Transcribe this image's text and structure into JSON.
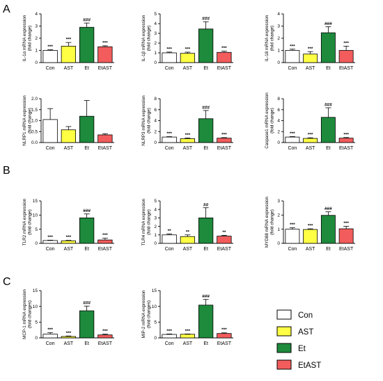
{
  "colors": {
    "Con": "#ffffff",
    "AST": "#ffff44",
    "Et": "#1d8a3c",
    "EtAST": "#f25c5c"
  },
  "categories": [
    "Con",
    "AST",
    "Et",
    "EtAST"
  ],
  "panel_letters": [
    "A",
    "B",
    "C"
  ],
  "legend": [
    {
      "name": "Con",
      "color": "#ffffff"
    },
    {
      "name": "AST",
      "color": "#ffff44"
    },
    {
      "name": "Et",
      "color": "#1d8a3c"
    },
    {
      "name": "EtAST",
      "color": "#f25c5c"
    }
  ],
  "chart_data": [
    {
      "type": "bar",
      "id": "il1a",
      "ylabel": [
        "IL-1α mRNA expression",
        "(fold change)"
      ],
      "categories": [
        "Con",
        "AST",
        "Et",
        "EtAST"
      ],
      "values": [
        1.0,
        1.35,
        2.9,
        1.3
      ],
      "errors": [
        0.05,
        0.3,
        0.35,
        0.08
      ],
      "ylim": [
        0,
        4
      ],
      "yticks": [
        0,
        1,
        2,
        3,
        4
      ],
      "annotations": [
        "***",
        "***",
        "###",
        "***"
      ]
    },
    {
      "type": "bar",
      "id": "il1b",
      "ylabel": [
        "IL-1β mRNA expression",
        "(fold change)"
      ],
      "categories": [
        "Con",
        "AST",
        "Et",
        "EtAST"
      ],
      "values": [
        1.0,
        0.95,
        3.45,
        1.05
      ],
      "errors": [
        0.08,
        0.12,
        0.75,
        0.12
      ],
      "ylim": [
        0,
        5
      ],
      "yticks": [
        0,
        1,
        2,
        3,
        4,
        5
      ],
      "annotations": [
        "***",
        "***",
        "###",
        "***"
      ]
    },
    {
      "type": "bar",
      "id": "il18",
      "ylabel": [
        "IL-18 mRNA expression",
        "(fold change)"
      ],
      "categories": [
        "Con",
        "AST",
        "Et",
        "EtAST"
      ],
      "values": [
        1.0,
        0.7,
        2.45,
        1.0
      ],
      "errors": [
        0.1,
        0.2,
        0.5,
        0.35
      ],
      "ylim": [
        0,
        4
      ],
      "yticks": [
        0,
        1,
        2,
        3,
        4
      ],
      "annotations": [
        "***",
        "***",
        "###",
        "***"
      ]
    },
    {
      "type": "bar",
      "id": "nlrp1",
      "ylabel": [
        "NLRP1 mRNA expression",
        "(fold change)"
      ],
      "categories": [
        "Con",
        "AST",
        "Et",
        "EtAST"
      ],
      "values": [
        1.05,
        0.58,
        1.2,
        0.35
      ],
      "errors": [
        0.5,
        0.15,
        0.72,
        0.05
      ],
      "ylim": [
        0,
        2.0
      ],
      "yticks": [
        0.0,
        0.5,
        1.0,
        1.5,
        2.0
      ],
      "annotations": [
        "",
        "",
        "",
        ""
      ]
    },
    {
      "type": "bar",
      "id": "nlrp3",
      "ylabel": [
        "NLRP3 mRNA expression",
        "(fold change)"
      ],
      "categories": [
        "Con",
        "AST",
        "Et",
        "EtAST"
      ],
      "values": [
        1.0,
        0.7,
        4.35,
        0.8
      ],
      "errors": [
        0.08,
        0.12,
        1.5,
        0.1
      ],
      "ylim": [
        0,
        8
      ],
      "yticks": [
        0,
        2,
        4,
        6,
        8
      ],
      "annotations": [
        "***",
        "***",
        "###",
        "***"
      ]
    },
    {
      "type": "bar",
      "id": "casp1",
      "ylabel": [
        "Caspase1 mRNA expression",
        "(fold change)"
      ],
      "categories": [
        "Con",
        "AST",
        "Et",
        "EtAST"
      ],
      "values": [
        1.0,
        0.75,
        4.6,
        0.8
      ],
      "errors": [
        0.1,
        0.12,
        1.75,
        0.12
      ],
      "ylim": [
        0,
        8
      ],
      "yticks": [
        0,
        2,
        4,
        6,
        8
      ],
      "annotations": [
        "***",
        "***",
        "###",
        "***"
      ]
    },
    {
      "type": "bar",
      "id": "tlr2",
      "ylabel": [
        "TLR2 mRNA expression",
        "(fold change)"
      ],
      "categories": [
        "Con",
        "AST",
        "Et",
        "EtAST"
      ],
      "values": [
        1.0,
        0.9,
        9.0,
        1.2
      ],
      "errors": [
        0.12,
        0.15,
        1.4,
        0.6
      ],
      "ylim": [
        0,
        15
      ],
      "yticks": [
        0,
        5,
        10,
        15
      ],
      "annotations": [
        "***",
        "***",
        "###",
        "***"
      ]
    },
    {
      "type": "bar",
      "id": "tlr4",
      "ylabel": [
        "TLR4 mRNA expression",
        "(fold change)"
      ],
      "categories": [
        "Con",
        "AST",
        "Et",
        "EtAST"
      ],
      "values": [
        1.0,
        0.8,
        3.0,
        0.85
      ],
      "errors": [
        0.1,
        0.2,
        1.2,
        0.1
      ],
      "ylim": [
        0,
        5
      ],
      "yticks": [
        0,
        1,
        2,
        3,
        4,
        5
      ],
      "annotations": [
        "**",
        "**",
        "##",
        "**"
      ]
    },
    {
      "type": "bar",
      "id": "myd88",
      "ylabel": [
        "MYD88 mRNA expression",
        "(fold change)"
      ],
      "categories": [
        "Con",
        "AST",
        "Et",
        "EtAST"
      ],
      "values": [
        1.0,
        0.98,
        1.98,
        1.03
      ],
      "errors": [
        0.1,
        0.05,
        0.25,
        0.18
      ],
      "ylim": [
        0,
        3
      ],
      "yticks": [
        0,
        1,
        2,
        3
      ],
      "annotations": [
        "***",
        "***",
        "###",
        "***"
      ]
    },
    {
      "type": "bar",
      "id": "mcp1",
      "ylabel": [
        "MCP-1 mRNA expression",
        "(fold changes)"
      ],
      "categories": [
        "Con",
        "AST",
        "Et",
        "EtAST"
      ],
      "values": [
        1.2,
        0.45,
        8.6,
        0.95
      ],
      "errors": [
        0.5,
        0.15,
        1.5,
        0.25
      ],
      "ylim": [
        0,
        15
      ],
      "yticks": [
        0,
        5,
        10,
        15
      ],
      "annotations": [
        "***",
        "***",
        "###",
        "***"
      ]
    },
    {
      "type": "bar",
      "id": "mip2",
      "ylabel": [
        "MIP-2 mRNA expression",
        "(fold changes)"
      ],
      "categories": [
        "Con",
        "AST",
        "Et",
        "EtAST"
      ],
      "values": [
        1.1,
        1.15,
        10.4,
        1.4
      ],
      "errors": [
        0.15,
        0.1,
        1.8,
        0.2
      ],
      "ylim": [
        0,
        15
      ],
      "yticks": [
        0,
        5,
        10,
        15
      ],
      "annotations": [
        "***",
        "***",
        "###",
        "***"
      ]
    }
  ]
}
